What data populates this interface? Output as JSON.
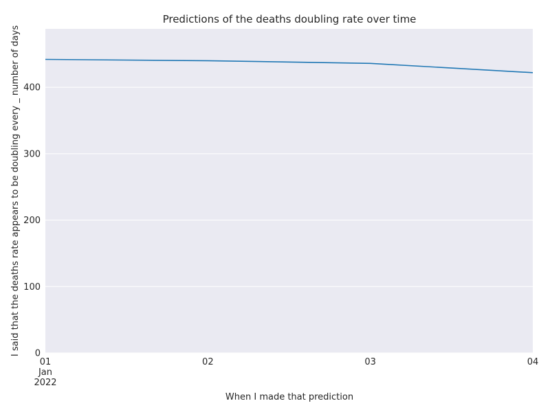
{
  "chart_data": {
    "type": "line",
    "title": "Predictions of the deaths doubling rate over time",
    "xlabel": "When I made that prediction",
    "ylabel": "I said that the deaths rate appears to be doubling every _ number of days",
    "x": [
      "2022-01-01",
      "2022-01-02",
      "2022-01-03",
      "2022-01-04"
    ],
    "x_tick_labels": [
      {
        "day": "01",
        "month": "Jan",
        "year": "2022"
      },
      {
        "day": "02",
        "month": "",
        "year": ""
      },
      {
        "day": "03",
        "month": "",
        "year": ""
      },
      {
        "day": "04",
        "month": "",
        "year": ""
      }
    ],
    "series": [
      {
        "values": [
          442,
          440,
          436,
          422
        ],
        "color": "#1f77b4"
      }
    ],
    "y_ticks": [
      0,
      100,
      200,
      300,
      400
    ],
    "ylim": [
      0,
      488
    ],
    "grid": "horizontal",
    "background_color": "#eaeaf2",
    "grid_color": "#ffffff"
  }
}
